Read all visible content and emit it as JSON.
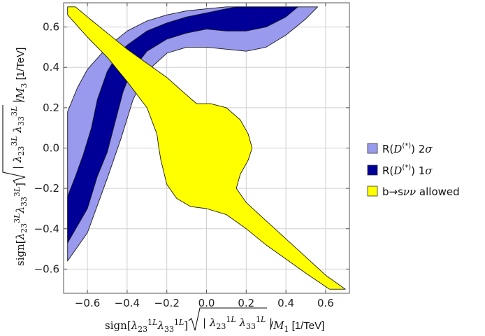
{
  "chart_data": {
    "type": "area",
    "xlabel": "sign[λ₂₃¹ᴸλ₃₃¹ᴸ]√|λ₂₃¹ᴸλ₃₃¹ᴸ| /M₁ [1/TeV]",
    "ylabel": "sign[λ₂₃³ᴸλ₃₃³ᴸ]√|λ₂₃³ᴸλ₃₃³ᴸ| /M₃ [1/TeV]",
    "xlim": [
      -0.72,
      0.72
    ],
    "ylim": [
      -0.72,
      0.72
    ],
    "x_ticks": [
      "−0.6",
      "−0.4",
      "−0.2",
      "0.0",
      "0.2",
      "0.4",
      "0.6"
    ],
    "y_ticks": [
      "−0.6",
      "−0.4",
      "−0.2",
      "0.0",
      "0.2",
      "0.4",
      "0.6"
    ],
    "grid": true,
    "legend_position": "right",
    "series": [
      {
        "name": "R(D(*)) 2σ",
        "color": "#9999ee",
        "polygon": [
          [
            -0.7,
            0.18
          ],
          [
            -0.65,
            0.3
          ],
          [
            -0.6,
            0.39
          ],
          [
            -0.5,
            0.5
          ],
          [
            -0.4,
            0.58
          ],
          [
            -0.3,
            0.63
          ],
          [
            -0.2,
            0.66
          ],
          [
            -0.1,
            0.68
          ],
          [
            0.0,
            0.69
          ],
          [
            0.1,
            0.7
          ],
          [
            0.56,
            0.7
          ],
          [
            0.5,
            0.64
          ],
          [
            0.4,
            0.56
          ],
          [
            0.3,
            0.5
          ],
          [
            0.2,
            0.48
          ],
          [
            0.1,
            0.49
          ],
          [
            0.0,
            0.5
          ],
          [
            -0.1,
            0.5
          ],
          [
            -0.2,
            0.47
          ],
          [
            -0.3,
            0.38
          ],
          [
            -0.37,
            0.24
          ],
          [
            -0.43,
            0.05
          ],
          [
            -0.5,
            -0.15
          ],
          [
            -0.6,
            -0.42
          ],
          [
            -0.7,
            -0.56
          ]
        ]
      },
      {
        "name": "R(D(*)) 1σ",
        "color": "#000099",
        "polygon": [
          [
            -0.7,
            -0.24
          ],
          [
            -0.66,
            -0.14
          ],
          [
            -0.62,
            -0.03
          ],
          [
            -0.58,
            0.1
          ],
          [
            -0.55,
            0.24
          ],
          [
            -0.5,
            0.38
          ],
          [
            -0.45,
            0.46
          ],
          [
            -0.4,
            0.51
          ],
          [
            -0.3,
            0.58
          ],
          [
            -0.2,
            0.62
          ],
          [
            -0.1,
            0.65
          ],
          [
            0.0,
            0.67
          ],
          [
            0.1,
            0.69
          ],
          [
            0.15,
            0.7
          ],
          [
            0.46,
            0.7
          ],
          [
            0.4,
            0.65
          ],
          [
            0.3,
            0.6
          ],
          [
            0.2,
            0.58
          ],
          [
            0.1,
            0.58
          ],
          [
            0.0,
            0.59
          ],
          [
            -0.1,
            0.57
          ],
          [
            -0.2,
            0.54
          ],
          [
            -0.3,
            0.48
          ],
          [
            -0.38,
            0.38
          ],
          [
            -0.42,
            0.28
          ],
          [
            -0.46,
            0.13
          ],
          [
            -0.5,
            -0.02
          ],
          [
            -0.55,
            -0.14
          ],
          [
            -0.6,
            -0.3
          ],
          [
            -0.7,
            -0.47
          ]
        ]
      },
      {
        "name": "b→sνν allowed",
        "color": "#ffff00",
        "polygon": [
          [
            -0.7,
            0.7
          ],
          [
            -0.66,
            0.7
          ],
          [
            -0.6,
            0.65
          ],
          [
            -0.5,
            0.57
          ],
          [
            -0.4,
            0.49
          ],
          [
            -0.3,
            0.42
          ],
          [
            -0.2,
            0.35
          ],
          [
            -0.12,
            0.28
          ],
          [
            -0.05,
            0.22
          ],
          [
            0.02,
            0.22
          ],
          [
            0.1,
            0.2
          ],
          [
            0.17,
            0.14
          ],
          [
            0.21,
            0.07
          ],
          [
            0.23,
            0.0
          ],
          [
            0.21,
            -0.06
          ],
          [
            0.17,
            -0.13
          ],
          [
            0.15,
            -0.2
          ],
          [
            0.2,
            -0.27
          ],
          [
            0.3,
            -0.36
          ],
          [
            0.4,
            -0.45
          ],
          [
            0.5,
            -0.54
          ],
          [
            0.6,
            -0.63
          ],
          [
            0.7,
            -0.7
          ],
          [
            0.62,
            -0.7
          ],
          [
            0.5,
            -0.62
          ],
          [
            0.4,
            -0.55
          ],
          [
            0.3,
            -0.48
          ],
          [
            0.2,
            -0.4
          ],
          [
            0.1,
            -0.33
          ],
          [
            0.0,
            -0.3
          ],
          [
            -0.08,
            -0.29
          ],
          [
            -0.15,
            -0.25
          ],
          [
            -0.2,
            -0.18
          ],
          [
            -0.23,
            -0.06
          ],
          [
            -0.24,
            0.0
          ],
          [
            -0.25,
            0.07
          ],
          [
            -0.3,
            0.2
          ],
          [
            -0.4,
            0.33
          ],
          [
            -0.5,
            0.45
          ],
          [
            -0.6,
            0.55
          ],
          [
            -0.7,
            0.66
          ]
        ]
      }
    ]
  }
}
